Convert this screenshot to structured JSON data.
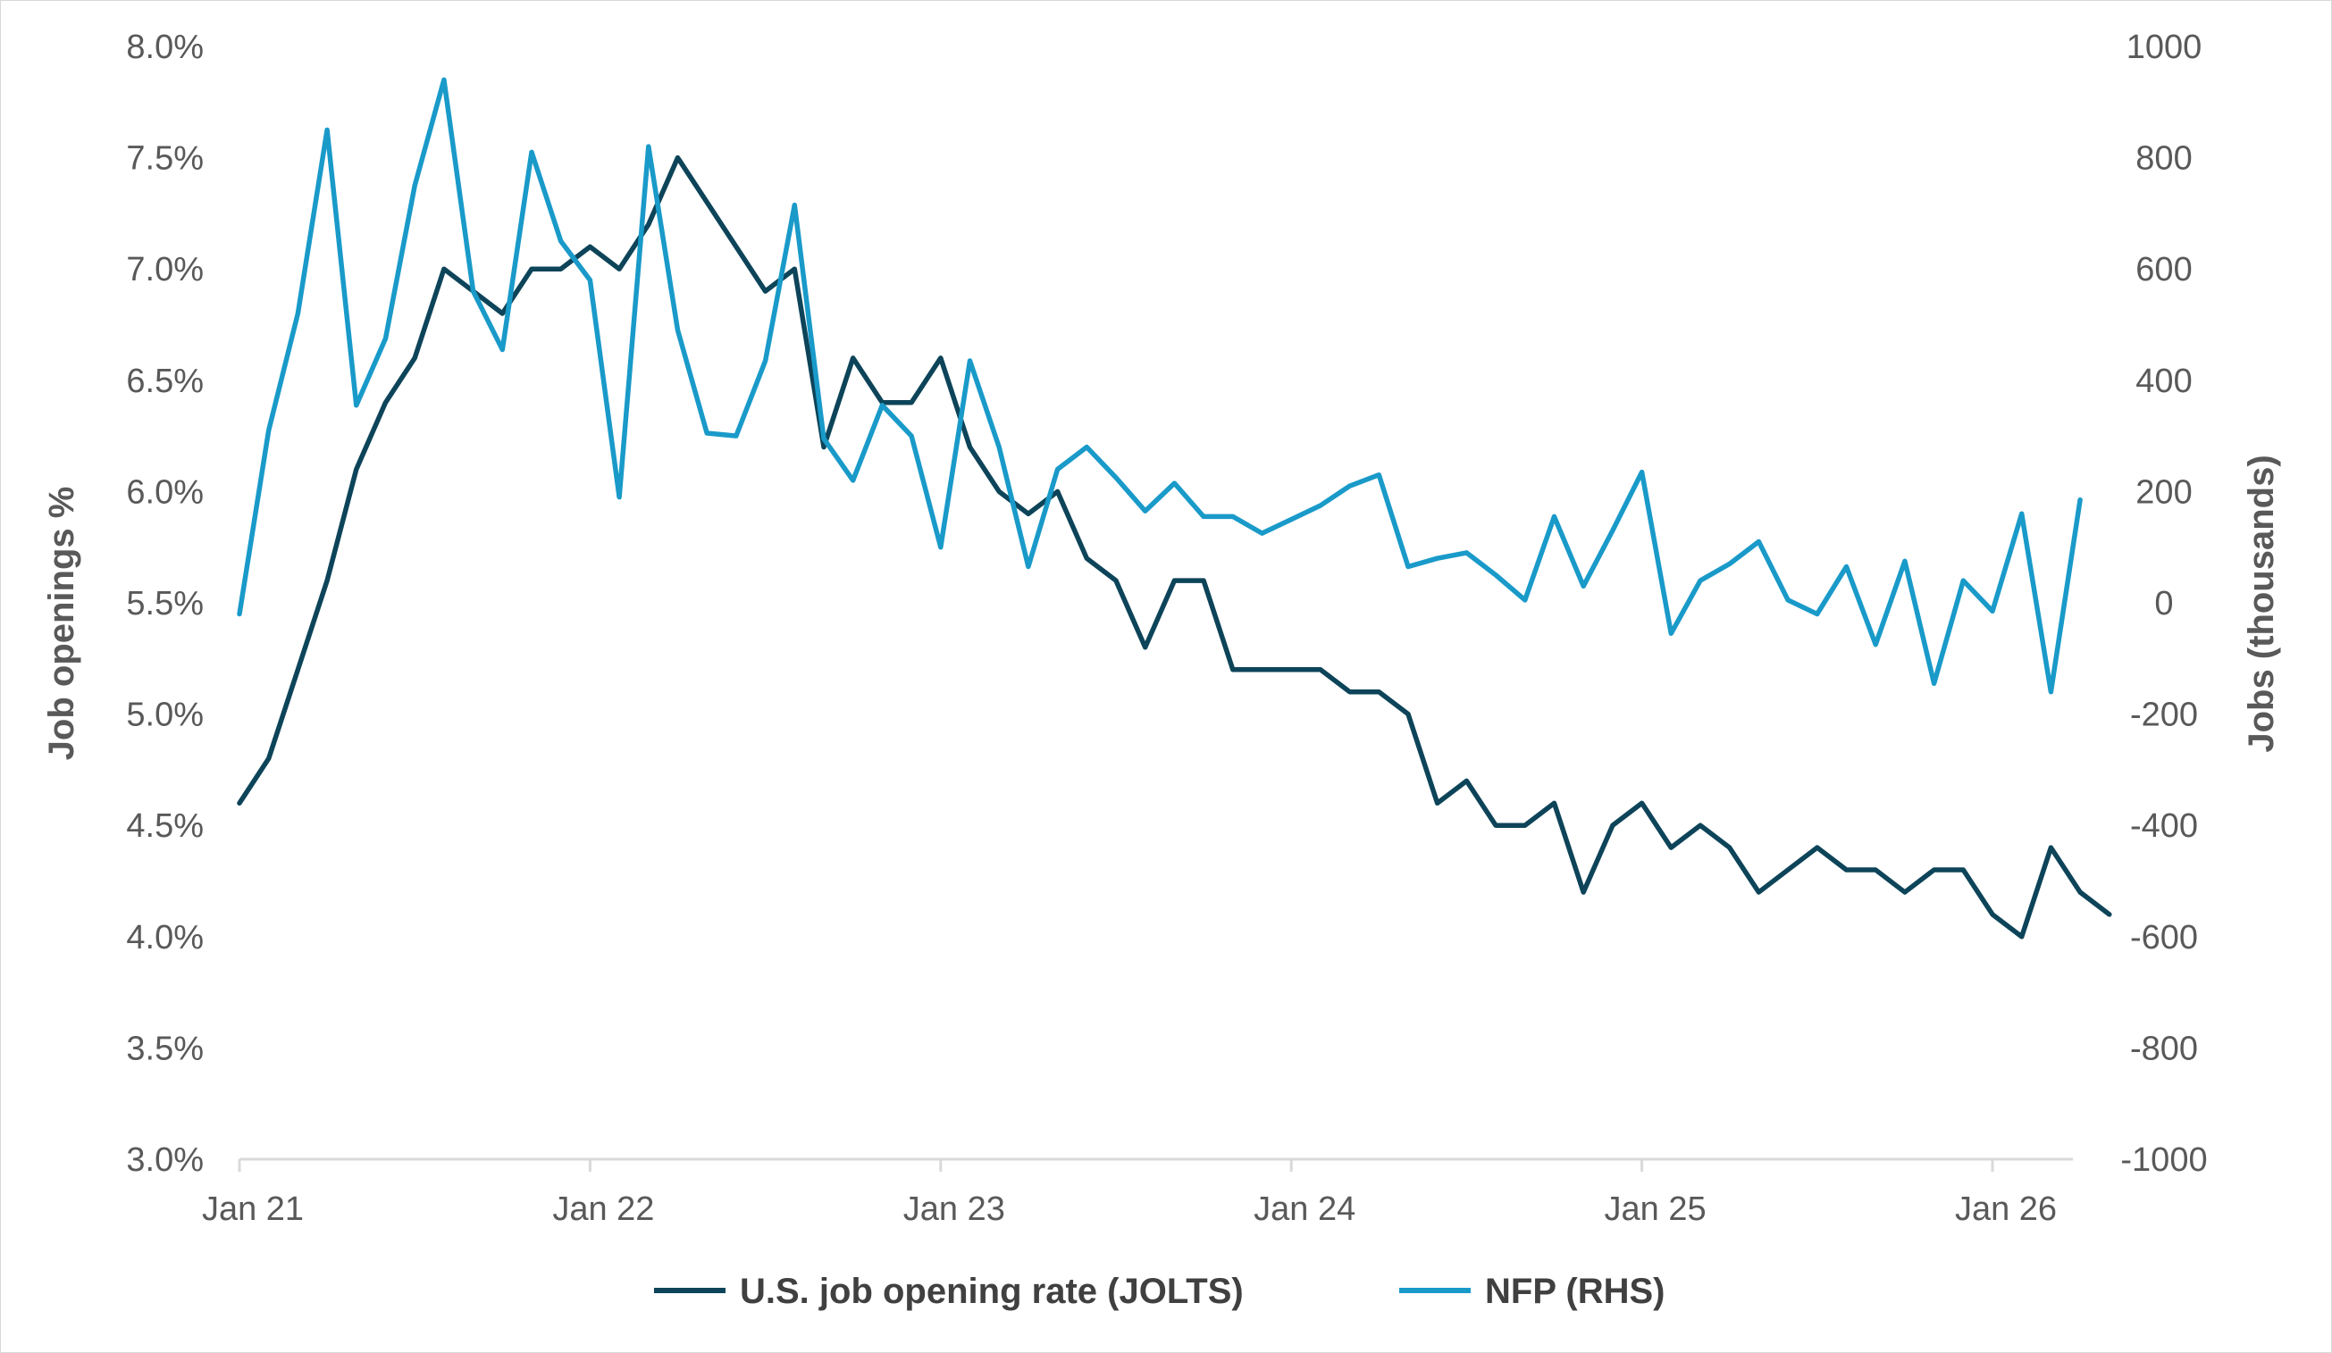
{
  "chart_data": {
    "type": "line",
    "title": "",
    "x_axis": {
      "tick_labels": [
        "Jan 21",
        "Jan 22",
        "Jan 23",
        "Jan 24",
        "Jan 25",
        "Jan 26"
      ],
      "range": [
        "2021-01",
        "2026-03"
      ]
    },
    "y_left": {
      "label": "Job openings %",
      "range": [
        3.0,
        8.0
      ],
      "tick_labels": [
        "3.0%",
        "3.5%",
        "4.0%",
        "4.5%",
        "5.0%",
        "5.5%",
        "6.0%",
        "6.5%",
        "7.0%",
        "7.5%",
        "8.0%"
      ]
    },
    "y_right": {
      "label": "Jobs (thousands)",
      "range": [
        -1000,
        1000
      ],
      "tick_labels": [
        "-1000",
        "-800",
        "-600",
        "-400",
        "-200",
        "0",
        "200",
        "400",
        "600",
        "800",
        "1000"
      ]
    },
    "grid": false,
    "legend_position": "bottom",
    "series": [
      {
        "name": "U.S. job opening rate (JOLTS)",
        "axis": "left",
        "color": "#0d4459",
        "start": "2021-01",
        "values": [
          4.6,
          4.8,
          5.2,
          5.6,
          6.1,
          6.4,
          6.6,
          7.0,
          6.9,
          6.8,
          7.0,
          7.0,
          7.1,
          7.0,
          7.2,
          7.5,
          7.3,
          7.1,
          6.9,
          7.0,
          6.2,
          6.6,
          6.4,
          6.4,
          6.6,
          6.2,
          6.0,
          5.9,
          6.0,
          5.7,
          5.6,
          5.3,
          5.6,
          5.6,
          5.2,
          5.2,
          5.2,
          5.2,
          5.1,
          5.1,
          5.0,
          4.6,
          4.7,
          4.5,
          4.5,
          4.6,
          4.2,
          4.5,
          4.6,
          4.4,
          4.5,
          4.4,
          4.2,
          4.3,
          4.4,
          4.3,
          4.3,
          4.2,
          4.3,
          4.3,
          4.1,
          4.0,
          4.4,
          4.2,
          4.1
        ]
      },
      {
        "name": "NFP (RHS)",
        "axis": "right",
        "color": "#199ac9",
        "start": "2021-01",
        "values": [
          -20,
          310,
          520,
          850,
          355,
          475,
          750,
          940,
          560,
          455,
          810,
          650,
          580,
          190,
          820,
          490,
          305,
          300,
          435,
          715,
          295,
          220,
          355,
          300,
          100,
          435,
          280,
          65,
          240,
          280,
          225,
          165,
          215,
          155,
          155,
          125,
          150,
          175,
          210,
          230,
          65,
          80,
          90,
          50,
          5,
          155,
          30,
          130,
          235,
          -55,
          40,
          70,
          110,
          5,
          -20,
          65,
          -75,
          75,
          -145,
          40,
          -15,
          160,
          -160,
          185
        ]
      }
    ]
  }
}
